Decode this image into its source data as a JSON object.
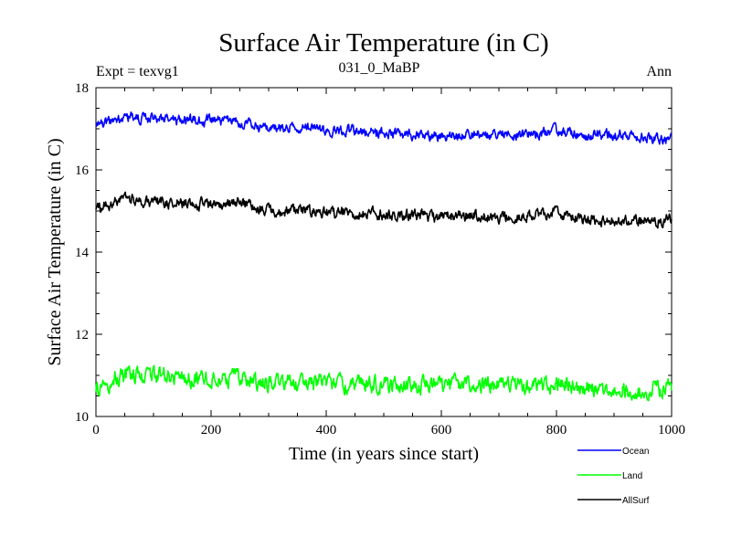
{
  "chart_data": {
    "type": "line",
    "title": "Surface Air Temperature (in C)",
    "left_annotation": "Expt = texvg1",
    "center_annotation": "031_0_MaBP",
    "right_annotation": "Ann",
    "xlabel": "Time (in years since start)",
    "ylabel": "Surface Air Temperature (in C)",
    "xlim": [
      0,
      1000
    ],
    "ylim": [
      10,
      18
    ],
    "x_ticks": [
      "0",
      "200",
      "400",
      "600",
      "800",
      "1000"
    ],
    "y_ticks": [
      "10",
      "12",
      "14",
      "16",
      "18"
    ],
    "grid": false,
    "legend_position": "bottom-right",
    "series": [
      {
        "name": "Ocean",
        "color": "#0000ff",
        "x": [
          0,
          50,
          100,
          150,
          200,
          250,
          300,
          350,
          400,
          450,
          500,
          550,
          600,
          650,
          700,
          750,
          800,
          850,
          900,
          950,
          1000
        ],
        "values": [
          17.05,
          17.3,
          17.25,
          17.2,
          17.2,
          17.15,
          17.0,
          17.05,
          16.95,
          16.95,
          16.9,
          16.85,
          16.85,
          16.9,
          16.85,
          16.85,
          16.95,
          16.85,
          16.85,
          16.8,
          16.75
        ],
        "noise": 0.1
      },
      {
        "name": "Land",
        "color": "#00ff00",
        "x": [
          0,
          50,
          100,
          150,
          200,
          250,
          300,
          350,
          400,
          450,
          500,
          550,
          600,
          650,
          700,
          750,
          800,
          850,
          900,
          950,
          1000
        ],
        "values": [
          10.7,
          11.0,
          11.0,
          10.95,
          10.95,
          10.95,
          10.8,
          10.85,
          10.8,
          10.8,
          10.75,
          10.75,
          10.75,
          10.8,
          10.75,
          10.75,
          10.8,
          10.7,
          10.7,
          10.6,
          10.65
        ],
        "noise": 0.16
      },
      {
        "name": "AllSurf",
        "color": "#000000",
        "x": [
          0,
          50,
          100,
          150,
          200,
          250,
          300,
          350,
          400,
          450,
          500,
          550,
          600,
          650,
          700,
          750,
          800,
          850,
          900,
          950,
          1000
        ],
        "values": [
          15.05,
          15.3,
          15.2,
          15.2,
          15.15,
          15.2,
          15.0,
          15.0,
          14.95,
          14.95,
          14.9,
          14.9,
          14.85,
          14.9,
          14.85,
          14.85,
          14.95,
          14.8,
          14.75,
          14.75,
          14.8
        ],
        "noise": 0.11
      }
    ]
  }
}
